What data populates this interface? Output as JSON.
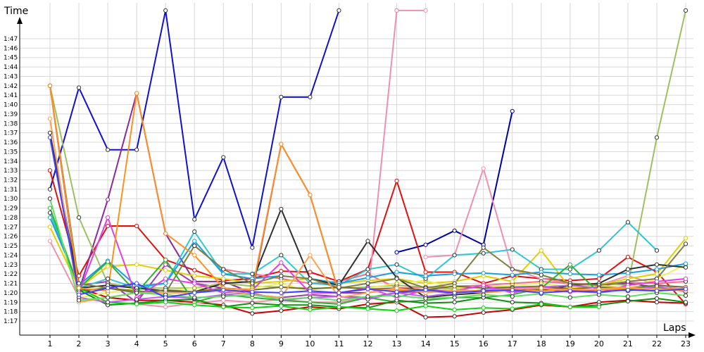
{
  "chart_data": {
    "type": "line",
    "title": "",
    "xlabel": "Laps",
    "ylabel": "Time",
    "x": [
      1,
      2,
      3,
      4,
      5,
      6,
      7,
      8,
      9,
      10,
      11,
      12,
      13,
      14,
      15,
      16,
      17,
      18,
      19,
      20,
      21,
      22,
      23
    ],
    "x_tick_labels": [
      "1",
      "2",
      "3",
      "4",
      "5",
      "6",
      "7",
      "8",
      "9",
      "10",
      "11",
      "12",
      "13",
      "14",
      "15",
      "16",
      "17",
      "18",
      "19",
      "20",
      "21",
      "22",
      "23"
    ],
    "y_tick_labels": [
      "1:17",
      "1:18",
      "1:19",
      "1:20",
      "1:21",
      "1:22",
      "1:23",
      "1:24",
      "1:25",
      "1:26",
      "1:27",
      "1:28",
      "1:29",
      "1:30",
      "1:31",
      "1:32",
      "1:33",
      "1:34",
      "1:35",
      "1:36",
      "1:37",
      "1:38",
      "1:39",
      "1:40",
      "1:41",
      "1:42",
      "1:43",
      "1:44",
      "1:45",
      "1:46",
      "1:47"
    ],
    "ylim_seconds": [
      76,
      108
    ],
    "y_unit": "lap time (m:ss)",
    "grid": true,
    "legend": "none",
    "series": [
      {
        "color": "#1010d0",
        "values": [
          91,
          101.8,
          95.2,
          95.2,
          110,
          87.8,
          94.4,
          84.8,
          100.8,
          100.8,
          110,
          null,
          110,
          null,
          null,
          null,
          null,
          null,
          null,
          null,
          null,
          null,
          null
        ]
      },
      {
        "color": "#0000a0",
        "values": [
          null,
          null,
          null,
          null,
          null,
          null,
          null,
          null,
          null,
          null,
          null,
          null,
          84.3,
          85.1,
          86.6,
          85.1,
          99.3,
          null,
          null,
          null,
          null,
          null,
          null
        ]
      },
      {
        "color": "#e01010",
        "values": [
          93,
          81.8,
          87.1,
          87.1,
          83.5,
          82.4,
          81.3,
          81.5,
          82.3,
          82.2,
          81.2,
          82.5,
          91.9,
          82.2,
          82.2,
          81.0,
          81.8,
          81.5,
          81.3,
          81.5,
          83.8,
          82.2,
          78.8
        ]
      },
      {
        "color": "#c80000",
        "values": [
          null,
          80.5,
          79.5,
          79.2,
          79.2,
          79.0,
          78.7,
          77.8,
          78.1,
          78.5,
          78.3,
          78.8,
          79.0,
          77.4,
          77.5,
          77.9,
          78.2,
          78.7,
          78.5,
          79.0,
          79.2,
          79.0,
          78.9
        ]
      },
      {
        "color": "#f090b0",
        "values": [
          85.5,
          79.5,
          79.0,
          78.8,
          78.5,
          78.9,
          79.2,
          79.0,
          79.3,
          79.0,
          79.0,
          79.5,
          110,
          110,
          null,
          null,
          null,
          null,
          null,
          null,
          null,
          null,
          null
        ]
      },
      {
        "color": "#f090b0",
        "values": [
          null,
          null,
          null,
          null,
          null,
          null,
          null,
          null,
          null,
          null,
          null,
          null,
          null,
          83.8,
          84.0,
          93.2,
          82.5,
          81.5,
          81.0,
          80.8,
          81.8,
          80.9,
          80.3
        ]
      },
      {
        "color": "#f07090",
        "values": [
          null,
          null,
          null,
          null,
          null,
          85.0,
          82.5,
          82.0,
          81.5,
          81.0,
          81.2,
          82.0,
          80.5,
          80.6,
          80.7,
          80.8,
          81.0,
          81.2,
          81.0,
          80.9,
          81.1,
          81.0,
          81.2
        ]
      },
      {
        "color": "#8c2a9c",
        "values": [
          102,
          80.2,
          89.9,
          101.2,
          86.3,
          81.2,
          81.2,
          80.0,
          95.8,
          90.4,
          80.0,
          80.0,
          80.5,
          80.3,
          80.2,
          80.1,
          80.4,
          80.2,
          80.5,
          80.8,
          81.0,
          80.6,
          80.2
        ]
      },
      {
        "color": "#a03ca8",
        "values": [
          null,
          80.8,
          81.2,
          79.0,
          83.0,
          81.0,
          80.5,
          79.8,
          79.5,
          79.8,
          79.6,
          79.5,
          80.0,
          80.2,
          80.0,
          80.3,
          80.2,
          80.4,
          80.1,
          80.3,
          80.5,
          80.2,
          80.4
        ]
      },
      {
        "color": "#a0c060",
        "values": [
          102,
          88.0,
          81.0,
          80.5,
          80.5,
          80.5,
          81.0,
          80.7,
          80.6,
          80.5,
          80.5,
          80.6,
          80.8,
          80.6,
          80.4,
          80.6,
          80.5,
          80.3,
          80.6,
          81.0,
          80.8,
          96.5,
          110
        ]
      },
      {
        "color": "#e0d000",
        "values": [
          87.0,
          80.5,
          82.8,
          83.0,
          82.4,
          81.8,
          81.5,
          81.0,
          81.2,
          81.5,
          81.0,
          81.3,
          81.5,
          81.0,
          81.2,
          81.8,
          81.2,
          84.5,
          80.5,
          80.8,
          81.5,
          82.0,
          85.8
        ]
      },
      {
        "color": "#f0f060",
        "values": [
          null,
          79.5,
          80.0,
          80.5,
          80.2,
          80.5,
          80.3,
          80.5,
          81.0,
          80.2,
          80.0,
          80.5,
          81.0,
          81.3,
          80.5,
          80.6,
          80.8,
          81.0,
          80.6,
          80.8,
          80.5,
          81.5,
          83.0
        ]
      },
      {
        "color": "#30c8d0",
        "values": [
          88.5,
          80.5,
          81.5,
          80.5,
          81.0,
          86.5,
          82.0,
          82.0,
          84.0,
          81.0,
          80.8,
          82.5,
          83.0,
          81.5,
          84.0,
          84.2,
          84.6,
          82.5,
          82.5,
          84.5,
          87.5,
          84.5,
          null
        ]
      },
      {
        "color": "#1aa0e0",
        "values": [
          88,
          80.8,
          83.4,
          80.7,
          81.0,
          85.5,
          82.0,
          81.5,
          81.8,
          81.5,
          81.0,
          81.6,
          82.2,
          81.8,
          82.0,
          82.1,
          81.9,
          82.2,
          82.0,
          81.9,
          82.1,
          82.5,
          83.1
        ]
      },
      {
        "color": "#303030",
        "values": [
          97,
          80.5,
          80.8,
          80.5,
          80.2,
          80.1,
          81.0,
          81.2,
          88.9,
          81.5,
          80.8,
          85.5,
          81.6,
          79.5,
          79.8,
          80.0,
          80.5,
          80.2,
          80.8,
          81.0,
          82.5,
          83.0,
          82.7
        ]
      },
      {
        "color": "#808040",
        "values": [
          102,
          81.0,
          80.5,
          80.2,
          80.0,
          85.0,
          82.5,
          81.0,
          81.8,
          81.5,
          80.5,
          81.0,
          81.5,
          80.5,
          81.0,
          84.8,
          82.5,
          81.9,
          81.0,
          80.8,
          81.2,
          81.5,
          85.2
        ]
      },
      {
        "color": "#707030",
        "values": [
          null,
          80.2,
          80.5,
          80.0,
          80.3,
          80.1,
          80.5,
          80.3,
          80.6,
          80.4,
          80.6,
          80.4,
          80.5,
          80.3,
          80.7,
          80.5,
          80.6,
          80.7,
          80.4,
          80.6,
          80.5,
          80.8,
          80.6
        ]
      },
      {
        "color": "#30b030",
        "values": [
          89,
          80.5,
          83.3,
          80.0,
          83.5,
          79.0,
          79.8,
          79.5,
          79.2,
          79.0,
          78.8,
          79.5,
          79.0,
          79.2,
          79.5,
          79.5,
          79.8,
          80.5,
          83.0,
          80.0,
          80.4,
          80.6,
          80.3
        ]
      },
      {
        "color": "#109010",
        "values": [
          null,
          80.3,
          78.7,
          78.9,
          79.2,
          79.3,
          78.5,
          78.9,
          78.7,
          78.7,
          78.5,
          78.4,
          79.2,
          78.9,
          79.0,
          79.5,
          79.0,
          78.9,
          78.5,
          78.7,
          79.1,
          79.4,
          79.0
        ]
      },
      {
        "color": "#10d010",
        "values": [
          null,
          80.5,
          79.0,
          78.8,
          79.0,
          78.7,
          78.5,
          78.4,
          78.6,
          78.2,
          78.5,
          78.3,
          78.1,
          78.6,
          78.2,
          78.4,
          78.3,
          78.8,
          78.5,
          78.5,
          null,
          null,
          null
        ]
      },
      {
        "color": "#e040e0",
        "values": [
          null,
          80.0,
          88.0,
          79.5,
          81.5,
          81.0,
          80.0,
          80.3,
          83.2,
          80.0,
          80.0,
          80.5,
          79.5,
          80.3,
          80.2,
          80.8,
          80.0,
          80.6,
          80.2,
          80.0,
          80.8,
          81.2,
          81.5
        ]
      },
      {
        "color": "#c060f0",
        "values": [
          null,
          79.5,
          79.0,
          79.3,
          79.6,
          79.4,
          79.8,
          80.0,
          79.2,
          79.5,
          79.6,
          79.3,
          80.0,
          79.6,
          80.0,
          80.3,
          80.5,
          80.6,
          80.8,
          80.5,
          80.2,
          80.7,
          80.1
        ]
      },
      {
        "color": "#ff9020",
        "values": [
          102,
          80.5,
          80.2,
          101.2,
          86.3,
          84.0,
          80.5,
          80.3,
          95.8,
          90.4,
          80.0,
          80.4,
          80.3,
          80.1,
          80.2,
          80.0,
          80.3,
          80.2,
          80.4,
          80.3,
          80.5,
          80.4,
          80.2
        ]
      },
      {
        "color": "#ffa050",
        "values": [
          98.5,
          79.0,
          79.5,
          80.0,
          80.0,
          80.0,
          80.3,
          79.8,
          79.5,
          84.0,
          79.5,
          80.0,
          80.5,
          80.0,
          80.3,
          80.2,
          80.4,
          80.5,
          80.2,
          80.4,
          80.6,
          80.3,
          80.5
        ]
      },
      {
        "color": "#60e060",
        "values": [
          90,
          79.2,
          79.5,
          80.0,
          79.8,
          79.5,
          79.6,
          79.8,
          79.3,
          79.5,
          79.2,
          79.6,
          79.7,
          79.4,
          79.5,
          79.8,
          79.6,
          79.9,
          79.5,
          79.8,
          79.6,
          80.0,
          79.7
        ]
      },
      {
        "color": "#4040ff",
        "values": [
          96.5,
          79.8,
          80.5,
          81.0,
          79.5,
          80.0,
          80.3,
          80.1,
          80.0,
          80.2,
          80.0,
          80.4,
          80.1,
          80.3,
          80.0,
          80.2,
          80.3,
          80.0,
          80.2,
          80.1,
          80.3,
          80.2,
          80.4
        ]
      }
    ]
  }
}
